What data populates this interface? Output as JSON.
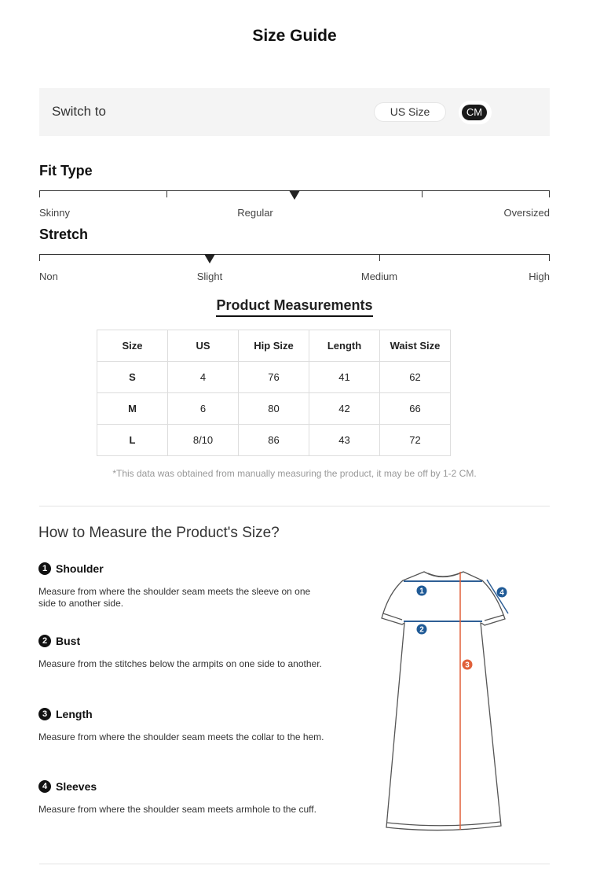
{
  "title": "Size Guide",
  "switch": {
    "label": "Switch to",
    "options": [
      "US Size",
      "CM"
    ],
    "selected": "CM"
  },
  "fit_type": {
    "title": "Fit Type",
    "labels": [
      "Skinny",
      "Regular",
      "Oversized"
    ],
    "selected": "Regular"
  },
  "stretch": {
    "title": "Stretch",
    "labels": [
      "Non",
      "Slight",
      "Medium",
      "High"
    ],
    "selected": "Slight"
  },
  "measurements": {
    "title": "Product Measurements",
    "headers": [
      "Size",
      "US",
      "Hip Size",
      "Length",
      "Waist Size"
    ],
    "rows": [
      [
        "S",
        "4",
        "76",
        "41",
        "62"
      ],
      [
        "M",
        "6",
        "80",
        "42",
        "66"
      ],
      [
        "L",
        "8/10",
        "86",
        "43",
        "72"
      ]
    ],
    "note": "*This data was obtained from manually measuring the product, it may be off by 1-2 CM."
  },
  "how_to": {
    "title": "How to Measure the Product's Size?",
    "steps": [
      {
        "num": "1",
        "name": "Shoulder",
        "desc": "Measure from where the shoulder seam meets the sleeve on one side to another side."
      },
      {
        "num": "2",
        "name": "Bust",
        "desc": "Measure from the stitches below the armpits on one side to another."
      },
      {
        "num": "3",
        "name": "Length",
        "desc": "Measure from where the shoulder seam meets the collar to the hem."
      },
      {
        "num": "4",
        "name": "Sleeves",
        "desc": "Measure from where the shoulder seam meets armhole to the cuff."
      }
    ]
  },
  "colors": {
    "blue_marker": "#1f5a96",
    "orange_marker": "#e0603a"
  }
}
